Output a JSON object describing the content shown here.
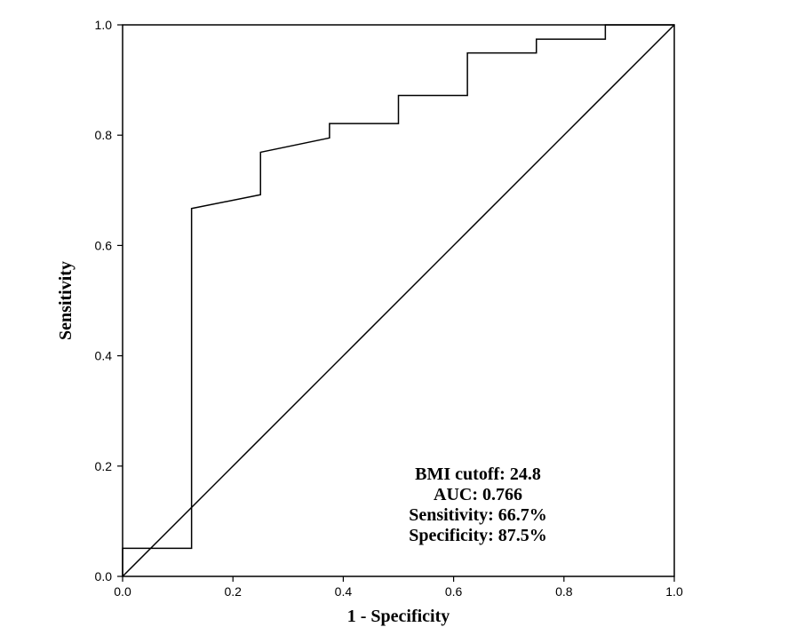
{
  "chart_data": {
    "type": "line",
    "title": "",
    "xlabel": "1 - Specificity",
    "ylabel": "Sensitivity",
    "xlim": [
      0.0,
      1.0
    ],
    "ylim": [
      0.0,
      1.0
    ],
    "x_ticks": [
      "0.0",
      "0.2",
      "0.4",
      "0.6",
      "0.8",
      "1.0"
    ],
    "y_ticks": [
      "0.0",
      "0.2",
      "0.4",
      "0.6",
      "0.8",
      "1.0"
    ],
    "grid": false,
    "legend": "none",
    "series": [
      {
        "kind": "roc-curve",
        "step": true,
        "points": [
          [
            0.0,
            0.0
          ],
          [
            0.0,
            0.051
          ],
          [
            0.125,
            0.051
          ],
          [
            0.125,
            0.667
          ],
          [
            0.25,
            0.692
          ],
          [
            0.25,
            0.769
          ],
          [
            0.375,
            0.795
          ],
          [
            0.375,
            0.821
          ],
          [
            0.5,
            0.821
          ],
          [
            0.5,
            0.872
          ],
          [
            0.625,
            0.872
          ],
          [
            0.625,
            0.949
          ],
          [
            0.75,
            0.949
          ],
          [
            0.75,
            0.974
          ],
          [
            0.875,
            0.974
          ],
          [
            0.875,
            1.0
          ],
          [
            1.0,
            1.0
          ]
        ]
      },
      {
        "kind": "reference-diagonal",
        "points": [
          [
            0.0,
            0.0
          ],
          [
            1.0,
            1.0
          ]
        ]
      }
    ],
    "annotations": [
      "BMI cutoff: 24.8",
      "AUC: 0.766",
      "Sensitivity: 66.7%",
      "Specificity: 87.5%"
    ],
    "colors": {
      "line": "#000000",
      "background": "#ffffff"
    }
  }
}
